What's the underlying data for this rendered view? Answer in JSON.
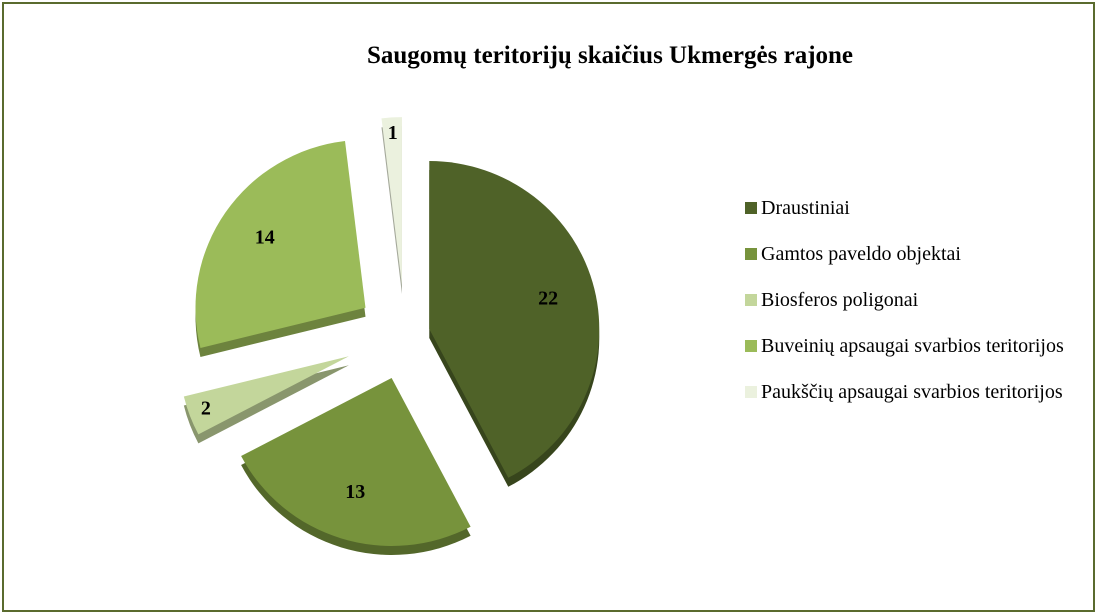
{
  "chart_data": {
    "type": "pie",
    "title": "Saugomų teritorijų skaičius Ukmergės rajone",
    "categories": [
      "Draustiniai",
      "Gamtos paveldo objektai",
      "Biosferos poligonai",
      "Buveinių apsaugai svarbios teritorijos",
      "Paukščių apsaugai svarbios teritorijos"
    ],
    "values": [
      22,
      13,
      2,
      14,
      1
    ],
    "colors": [
      "#4f6228",
      "#77933c",
      "#c3d69b",
      "#9bbb59",
      "#ebf1de"
    ],
    "legend": "right"
  }
}
